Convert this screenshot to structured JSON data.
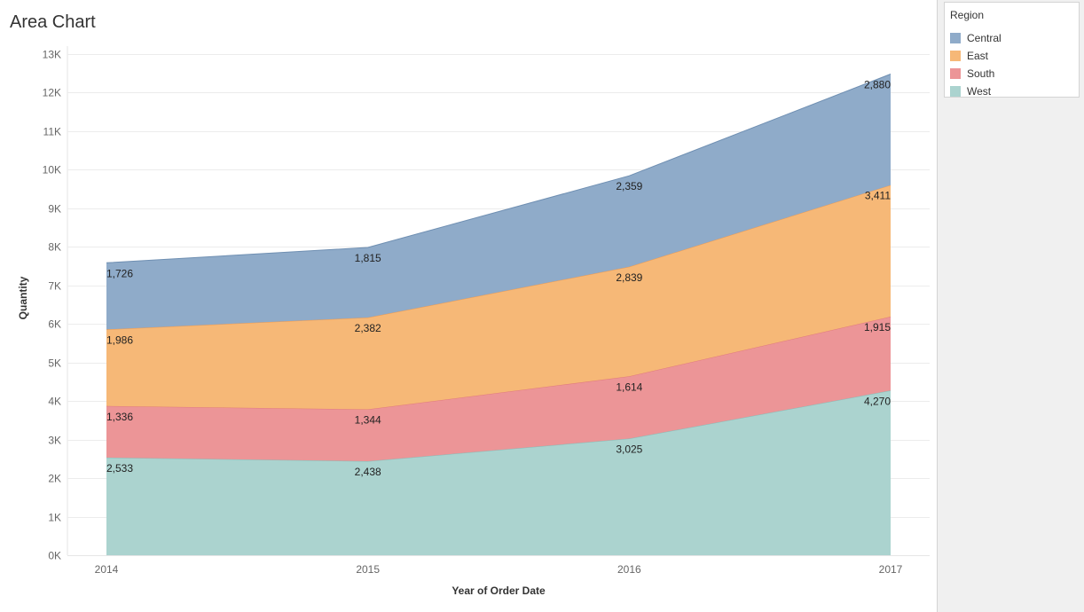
{
  "sheet": {
    "title": "Area Chart"
  },
  "legend": {
    "title": "Region",
    "items": [
      {
        "label": "Central",
        "color": "#8fabc9"
      },
      {
        "label": "East",
        "color": "#f6b877"
      },
      {
        "label": "South",
        "color": "#ec9597"
      },
      {
        "label": "West",
        "color": "#abd3cf"
      }
    ]
  },
  "chart_data": {
    "type": "area",
    "stacked": true,
    "title": "Area Chart",
    "xlabel": "Year of Order Date",
    "ylabel": "Quantity",
    "x": [
      "2014",
      "2015",
      "2016",
      "2017"
    ],
    "ylim": [
      0,
      13000
    ],
    "yticks": [
      0,
      1000,
      2000,
      3000,
      4000,
      5000,
      6000,
      7000,
      8000,
      9000,
      10000,
      11000,
      12000,
      13000
    ],
    "ytick_labels": [
      "0K",
      "1K",
      "2K",
      "3K",
      "4K",
      "5K",
      "6K",
      "7K",
      "8K",
      "9K",
      "10K",
      "11K",
      "12K",
      "13K"
    ],
    "grid": true,
    "legend_position": "right",
    "series": [
      {
        "name": "West",
        "values": [
          2533,
          2438,
          3025,
          4270
        ],
        "labels": [
          "2,533",
          "2,438",
          "3,025",
          "4,270"
        ],
        "color": "#abd3cf",
        "stroke": "#87bdb8"
      },
      {
        "name": "South",
        "values": [
          1336,
          1344,
          1614,
          1915
        ],
        "labels": [
          "1,336",
          "1,344",
          "1,614",
          "1,915"
        ],
        "color": "#ec9597",
        "stroke": "#e07a7d"
      },
      {
        "name": "East",
        "values": [
          1986,
          2382,
          2839,
          3411
        ],
        "labels": [
          "1,986",
          "2,382",
          "2,839",
          "3,411"
        ],
        "color": "#f6b877",
        "stroke": "#ef9a50"
      },
      {
        "name": "Central",
        "values": [
          1726,
          1815,
          2359,
          2880
        ],
        "labels": [
          "1,726",
          "1,815",
          "2,359",
          "2,880"
        ],
        "color": "#8fabc9",
        "stroke": "#6f8fb2"
      }
    ]
  }
}
